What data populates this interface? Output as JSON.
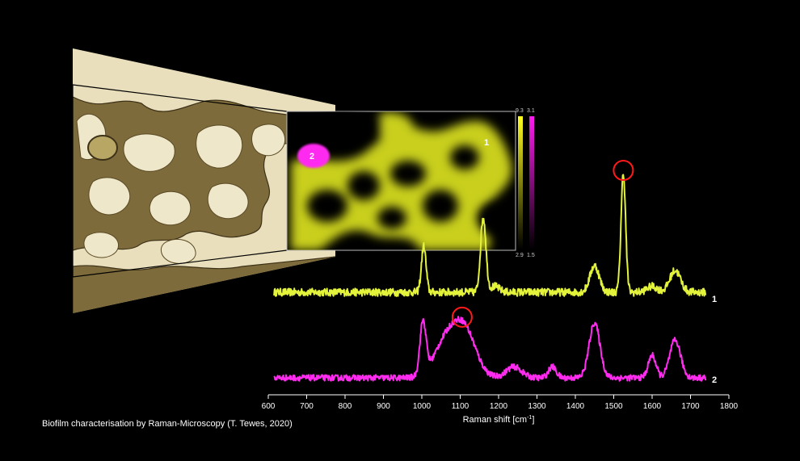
{
  "caption": "Biofilm characterisation by Raman-Microscopy (T. Tewes, 2020)",
  "colors": {
    "background": "#000000",
    "series_1": "#e3f23a",
    "series_2": "#ff2cf0",
    "highlight_circle": "#ff1a1a",
    "micrograph_light": "#efe6c6",
    "micrograph_dark": "#7d6b3c"
  },
  "raman_map": {
    "point_1_label": "1",
    "point_2_label": "2",
    "scale_yellow": {
      "max": "9.3",
      "min": "2.9"
    },
    "scale_magenta": {
      "max": "3.1",
      "min": "1.5"
    }
  },
  "chart_data": {
    "type": "line",
    "xlabel": "Raman shift [cm",
    "xlabel_sup": "-1",
    "xlabel_end": "]",
    "xlim": [
      600,
      1800
    ],
    "x_ticks": [
      "600",
      "700",
      "800",
      "900",
      "1000",
      "1100",
      "1200",
      "1300",
      "1400",
      "1500",
      "1600",
      "1700",
      "1800"
    ],
    "y_axis_shown": false,
    "grid": false,
    "series": [
      {
        "name": "1",
        "x_range": [
          615,
          1740
        ],
        "baseline": 1.0,
        "noise": 0.08,
        "peaks": [
          {
            "x": 1005,
            "height": 0.95,
            "width": 6
          },
          {
            "x": 1160,
            "height": 1.55,
            "width": 7
          },
          {
            "x": 1190,
            "height": 0.12,
            "width": 12
          },
          {
            "x": 1450,
            "height": 0.55,
            "width": 12
          },
          {
            "x": 1525,
            "height": 2.45,
            "width": 6
          },
          {
            "x": 1600,
            "height": 0.12,
            "width": 14
          },
          {
            "x": 1660,
            "height": 0.45,
            "width": 14
          }
        ],
        "highlight_peak_x": 1525
      },
      {
        "name": "2",
        "x_range": [
          615,
          1740
        ],
        "baseline": 0.0,
        "noise": 0.06,
        "peaks": [
          {
            "x": 1003,
            "height": 1.05,
            "width": 8
          },
          {
            "x": 1060,
            "height": 0.65,
            "width": 30
          },
          {
            "x": 1110,
            "height": 0.95,
            "width": 30
          },
          {
            "x": 1240,
            "height": 0.22,
            "width": 20
          },
          {
            "x": 1340,
            "height": 0.22,
            "width": 10
          },
          {
            "x": 1450,
            "height": 1.1,
            "width": 14
          },
          {
            "x": 1600,
            "height": 0.45,
            "width": 10
          },
          {
            "x": 1660,
            "height": 0.75,
            "width": 14
          }
        ],
        "highlight_peak_x": 1105
      }
    ]
  }
}
